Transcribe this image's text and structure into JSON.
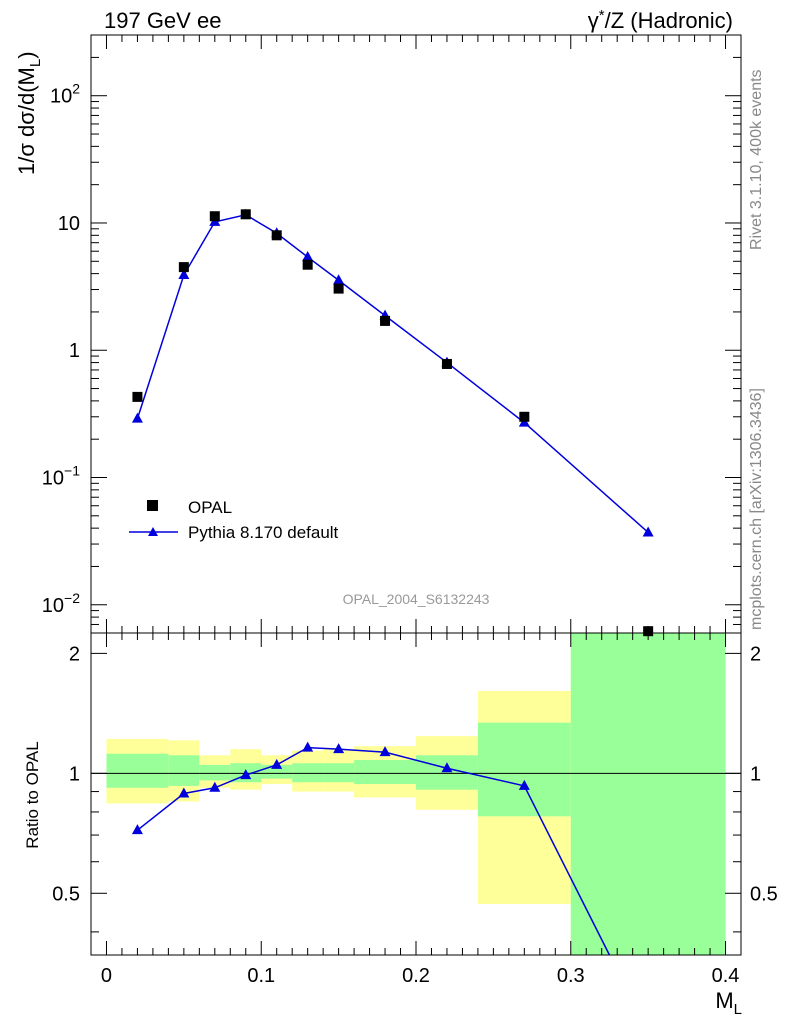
{
  "header": {
    "left_title": "197 GeV ee",
    "right_title_prefix": "γ",
    "right_title_sup": "*",
    "right_title_suffix": "/Z (Hadronic)"
  },
  "side_labels": {
    "rivet": "Rivet 3.1.10,  400k events",
    "mcplots": "mcplots.cern.ch [arXiv:1306.3436]"
  },
  "analysis_label": "OPAL_2004_S6132243",
  "legend": {
    "data_label": "OPAL",
    "mc_label": "Pythia 8.170 default"
  },
  "colors": {
    "data": "#000000",
    "mc": "#0000dd",
    "band_outer": "#ffff99",
    "band_inner": "#99ff99"
  },
  "chart_data": [
    {
      "type": "scatter",
      "ylabel_main": "1/σ dσ/d(M",
      "ylabel_sub": "L",
      "ylabel_close": ")",
      "xlabel_main": "M",
      "xlabel_sub": "L",
      "yscale": "log",
      "xlim": [
        -0.01,
        0.41
      ],
      "ylim": [
        0.006,
        300
      ],
      "y_ticks": [
        {
          "v": 0.01,
          "base": "10",
          "exp": "−2"
        },
        {
          "v": 0.1,
          "base": "10",
          "exp": "−1"
        },
        {
          "v": 1,
          "base": "1",
          "exp": ""
        },
        {
          "v": 10,
          "base": "10",
          "exp": ""
        },
        {
          "v": 100,
          "base": "10",
          "exp": "2"
        }
      ],
      "series": [
        {
          "name": "OPAL",
          "x": [
            0.02,
            0.05,
            0.07,
            0.09,
            0.11,
            0.13,
            0.15,
            0.18,
            0.22,
            0.27,
            0.35
          ],
          "y": [
            0.43,
            4.5,
            11.3,
            11.7,
            8.0,
            4.7,
            3.05,
            1.7,
            0.78,
            0.3,
            0.0062
          ]
        },
        {
          "name": "Pythia 8.170 default",
          "x": [
            0.02,
            0.05,
            0.07,
            0.09,
            0.11,
            0.13,
            0.15,
            0.18,
            0.22,
            0.27,
            0.35
          ],
          "y": [
            0.29,
            3.9,
            10.2,
            11.6,
            8.3,
            5.4,
            3.55,
            1.87,
            0.8,
            0.27,
            0.037
          ]
        }
      ]
    },
    {
      "type": "line",
      "ylabel": "Ratio to OPAL",
      "xlim": [
        -0.01,
        0.41
      ],
      "ylim": [
        0.35,
        2.25
      ],
      "x_ticks": [
        "0",
        "0.1",
        "0.2",
        "0.3",
        "0.4"
      ],
      "y_ticks": [
        "0.5",
        "1",
        "2"
      ],
      "bins": [
        {
          "lo": 0.0,
          "hi": 0.04,
          "outer_lo": 0.84,
          "outer_hi": 1.22,
          "inner_lo": 0.92,
          "inner_hi": 1.12
        },
        {
          "lo": 0.04,
          "hi": 0.06,
          "outer_lo": 0.85,
          "outer_hi": 1.21,
          "inner_lo": 0.93,
          "inner_hi": 1.11
        },
        {
          "lo": 0.06,
          "hi": 0.08,
          "outer_lo": 0.92,
          "outer_hi": 1.11,
          "inner_lo": 0.96,
          "inner_hi": 1.05
        },
        {
          "lo": 0.08,
          "hi": 0.1,
          "outer_lo": 0.91,
          "outer_hi": 1.15,
          "inner_lo": 0.95,
          "inner_hi": 1.06
        },
        {
          "lo": 0.1,
          "hi": 0.12,
          "outer_lo": 0.94,
          "outer_hi": 1.11,
          "inner_lo": 0.97,
          "inner_hi": 1.05
        },
        {
          "lo": 0.12,
          "hi": 0.14,
          "outer_lo": 0.9,
          "outer_hi": 1.14,
          "inner_lo": 0.95,
          "inner_hi": 1.06
        },
        {
          "lo": 0.14,
          "hi": 0.16,
          "outer_lo": 0.9,
          "outer_hi": 1.15,
          "inner_lo": 0.95,
          "inner_hi": 1.06
        },
        {
          "lo": 0.16,
          "hi": 0.2,
          "outer_lo": 0.87,
          "outer_hi": 1.17,
          "inner_lo": 0.94,
          "inner_hi": 1.08
        },
        {
          "lo": 0.2,
          "hi": 0.24,
          "outer_lo": 0.81,
          "outer_hi": 1.24,
          "inner_lo": 0.91,
          "inner_hi": 1.11
        },
        {
          "lo": 0.24,
          "hi": 0.3,
          "outer_lo": 0.47,
          "outer_hi": 1.61,
          "inner_lo": 0.78,
          "inner_hi": 1.34
        },
        {
          "lo": 0.3,
          "hi": 0.4,
          "outer_lo": 0.35,
          "outer_hi": 2.25,
          "inner_lo": 0.35,
          "inner_hi": 2.25
        }
      ],
      "ratio": {
        "x": [
          0.02,
          0.05,
          0.07,
          0.09,
          0.11,
          0.13,
          0.15,
          0.18,
          0.22,
          0.27,
          0.325
        ],
        "y": [
          0.72,
          0.89,
          0.92,
          0.99,
          1.05,
          1.16,
          1.15,
          1.13,
          1.03,
          0.93,
          0.35
        ]
      }
    }
  ]
}
